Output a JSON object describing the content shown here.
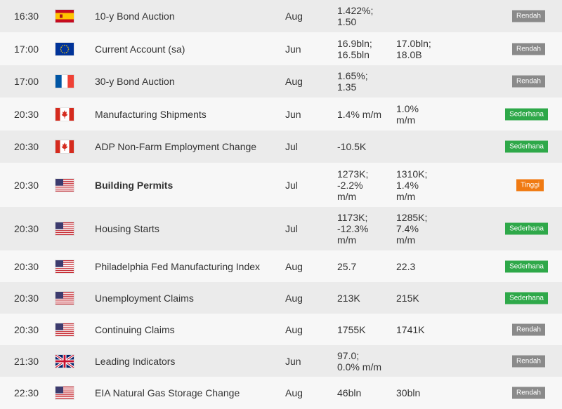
{
  "colors": {
    "low": "#8a8a8a",
    "medium": "#2ea849",
    "high": "#f07a12"
  },
  "rows": [
    {
      "time": "16:30",
      "flag": "spain-flag-icon",
      "event": "10-y Bond Auction",
      "period": "Aug",
      "actual": [
        "1.422%;",
        "1.50"
      ],
      "forecast": [],
      "impact": "Rendah",
      "level": "low"
    },
    {
      "time": "17:00",
      "flag": "eu-flag-icon",
      "event": "Current Account (sa)",
      "period": "Jun",
      "actual": [
        "16.9bln;",
        "16.5bln"
      ],
      "forecast": [
        "17.0bln;",
        "18.0B"
      ],
      "impact": "Rendah",
      "level": "low"
    },
    {
      "time": "17:00",
      "flag": "france-flag-icon",
      "event": "30-y Bond Auction",
      "period": "Aug",
      "actual": [
        "1.65%;",
        "1.35"
      ],
      "forecast": [],
      "impact": "Rendah",
      "level": "low"
    },
    {
      "time": "20:30",
      "flag": "canada-flag-icon",
      "event": "Manufacturing Shipments",
      "period": "Jun",
      "actual": [
        "1.4% m/m"
      ],
      "forecast": [
        "1.0%",
        "m/m"
      ],
      "impact": "Sederhana",
      "level": "medium"
    },
    {
      "time": "20:30",
      "flag": "canada-flag-icon",
      "event": "ADP Non-Farm Employment Change",
      "period": "Jul",
      "actual": [
        "-10.5K"
      ],
      "forecast": [],
      "impact": "Sederhana",
      "level": "medium"
    },
    {
      "time": "20:30",
      "flag": "us-flag-icon",
      "event": "Building Permits",
      "bold": true,
      "period": "Jul",
      "actual": [
        "1273K;",
        "-2.2%",
        "m/m"
      ],
      "forecast": [
        "1310K;",
        "1.4%",
        "m/m"
      ],
      "impact": "Tinggi",
      "level": "high"
    },
    {
      "time": "20:30",
      "flag": "us-flag-icon",
      "event": "Housing Starts",
      "period": "Jul",
      "actual": [
        "1173K;",
        "-12.3%",
        "m/m"
      ],
      "forecast": [
        "1285K;",
        "7.4%",
        "m/m"
      ],
      "impact": "Sederhana",
      "level": "medium"
    },
    {
      "time": "20:30",
      "flag": "us-flag-icon",
      "event": "Philadelphia Fed Manufacturing Index",
      "period": "Aug",
      "actual": [
        "25.7"
      ],
      "forecast": [
        "22.3"
      ],
      "impact": "Sederhana",
      "level": "medium"
    },
    {
      "time": "20:30",
      "flag": "us-flag-icon",
      "event": "Unemployment Claims",
      "period": "Aug",
      "actual": [
        "213K"
      ],
      "forecast": [
        "215K"
      ],
      "impact": "Sederhana",
      "level": "medium"
    },
    {
      "time": "20:30",
      "flag": "us-flag-icon",
      "event": "Continuing Claims",
      "period": "Aug",
      "actual": [
        "1755K"
      ],
      "forecast": [
        "1741K"
      ],
      "impact": "Rendah",
      "level": "low"
    },
    {
      "time": "21:30",
      "flag": "uk-flag-icon",
      "event": "Leading Indicators",
      "period": "Jun",
      "actual": [
        "97.0;",
        "0.0% m/m"
      ],
      "forecast": [],
      "impact": "Rendah",
      "level": "low"
    },
    {
      "time": "22:30",
      "flag": "us-flag-icon",
      "event": "EIA Natural Gas Storage Change",
      "period": "Aug",
      "actual": [
        "46bln"
      ],
      "forecast": [
        "30bln"
      ],
      "impact": "Rendah",
      "level": "low"
    }
  ]
}
